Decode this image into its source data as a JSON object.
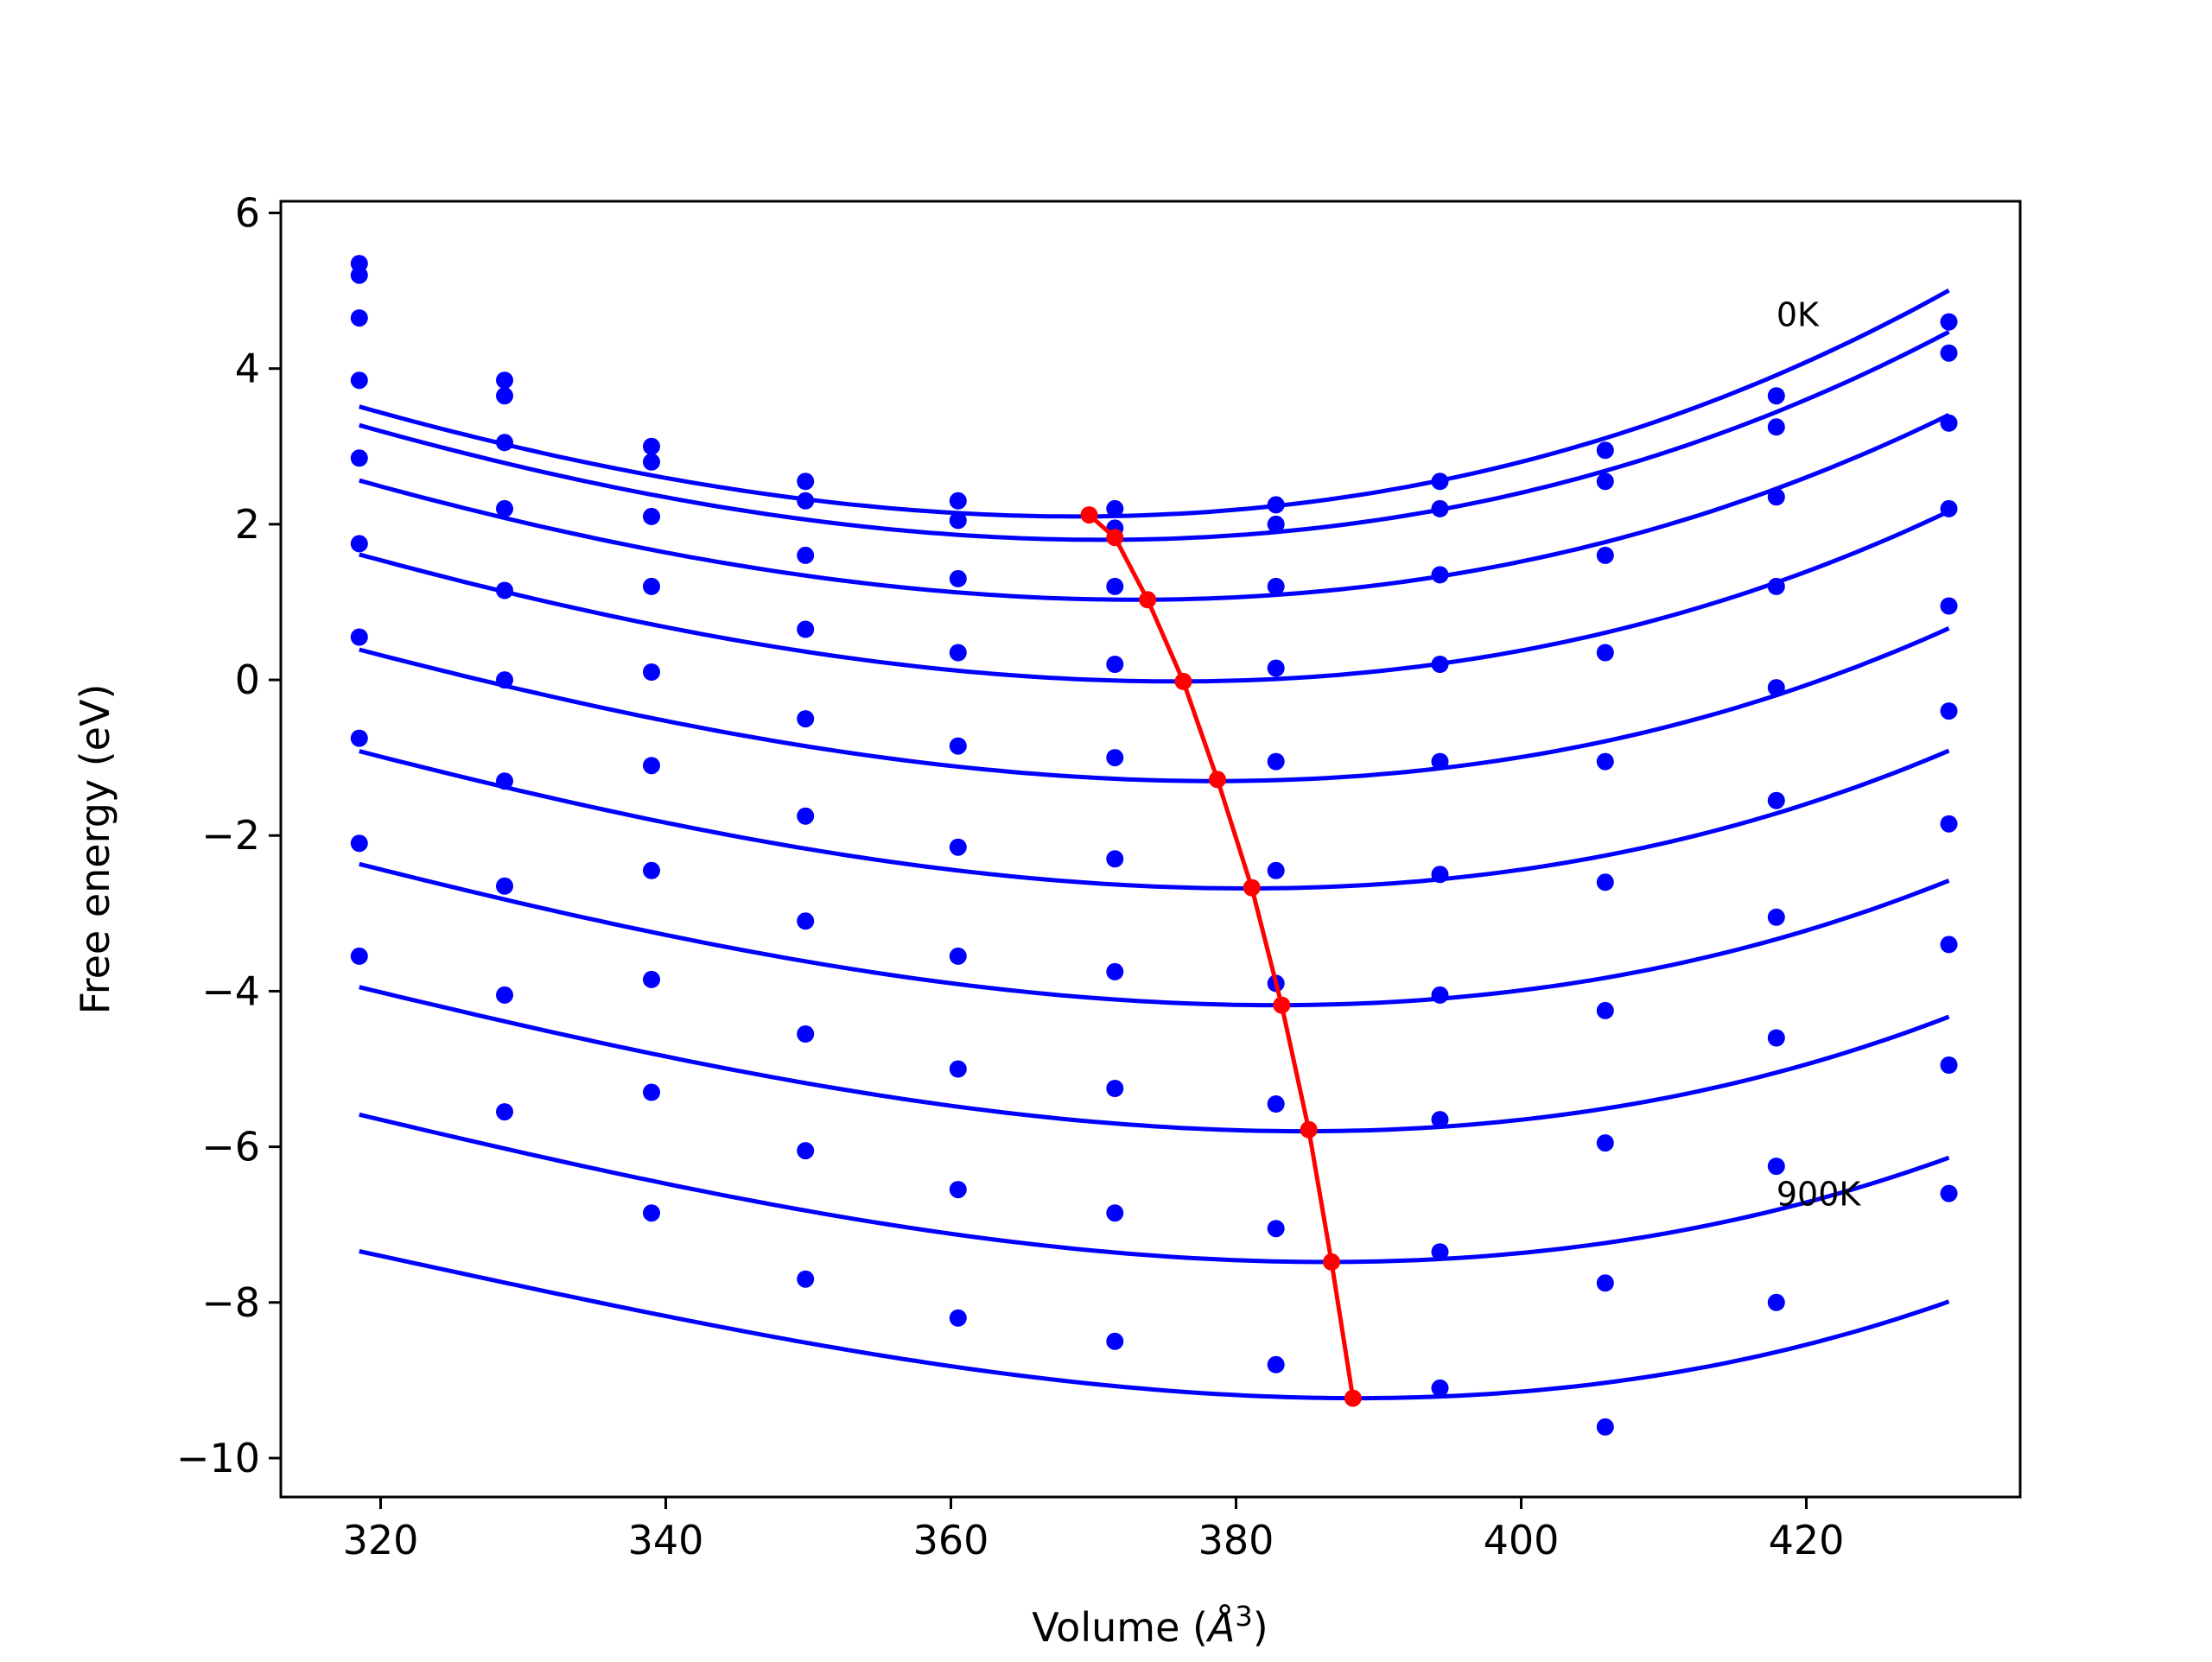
{
  "chart_data": {
    "type": "scatter",
    "title": "",
    "xlabel": "Volume (",
    "xlabel_symbol": "Å",
    "xlabel_power": "3",
    "xlabel_close": ")",
    "ylabel": "Free energy (eV)",
    "xlim": [
      313,
      435
    ],
    "ylim": [
      -10.5,
      6.15
    ],
    "xticks": [
      320,
      340,
      360,
      380,
      400,
      420
    ],
    "xtick_labels": [
      "320",
      "340",
      "360",
      "380",
      "400",
      "420"
    ],
    "yticks": [
      -10,
      -8,
      -6,
      -4,
      -2,
      0,
      2,
      4,
      6
    ],
    "ytick_labels": [
      "−10",
      "−8",
      "−6",
      "−4",
      "−2",
      "0",
      "2",
      "4",
      "6"
    ],
    "grid": false,
    "annotations": [
      {
        "text": "0K",
        "x": 417.9,
        "y": 4.7
      },
      {
        "text": "900K",
        "x": 417.9,
        "y": -6.6
      }
    ],
    "colors": {
      "points": "#0000ff",
      "fits": "#0000ff",
      "minimum": "#ff0000"
    },
    "x": [
      318.5,
      328.7,
      339.0,
      349.8,
      360.5,
      371.5,
      382.8,
      394.3,
      405.9,
      417.9,
      430.0
    ],
    "series": [
      {
        "y": [
          5.35,
          3.85,
          3.0,
          2.55,
          2.3,
          2.2,
          2.25,
          2.55,
          2.95,
          3.65,
          4.6
        ]
      },
      {
        "y": [
          5.2,
          3.65,
          2.8,
          2.3,
          2.05,
          1.95,
          2.0,
          2.2,
          2.55,
          3.25,
          4.2
        ]
      },
      {
        "y": [
          4.65,
          3.05,
          2.1,
          1.6,
          1.3,
          1.2,
          1.2,
          1.35,
          1.6,
          2.35,
          3.3
        ]
      },
      {
        "y": [
          3.85,
          2.2,
          1.2,
          0.65,
          0.35,
          0.2,
          0.15,
          0.2,
          0.35,
          1.2,
          2.2
        ]
      },
      {
        "y": [
          2.85,
          1.15,
          0.1,
          -0.5,
          -0.85,
          -1.0,
          -1.05,
          -1.05,
          -1.05,
          -0.1,
          0.95
        ]
      },
      {
        "y": [
          1.75,
          0.0,
          -1.1,
          -1.75,
          -2.15,
          -2.3,
          -2.45,
          -2.5,
          -2.6,
          -1.55,
          -0.4
        ]
      },
      {
        "y": [
          0.55,
          -1.3,
          -2.45,
          -3.1,
          -3.55,
          -3.75,
          -3.9,
          -4.05,
          -4.25,
          -3.05,
          -1.85
        ]
      },
      {
        "y": [
          -0.75,
          -2.65,
          -3.85,
          -4.55,
          -5.0,
          -5.25,
          -5.45,
          -5.65,
          -5.95,
          -4.6,
          -3.4
        ]
      },
      {
        "y": [
          -2.1,
          -4.05,
          -5.3,
          -6.05,
          -6.55,
          -6.85,
          -7.05,
          -7.35,
          -7.75,
          -6.25,
          -4.95
        ]
      },
      {
        "y": [
          -3.55,
          -5.55,
          -6.85,
          -7.7,
          -8.2,
          -8.5,
          -8.8,
          -9.1,
          -9.6,
          -8.0,
          -6.6
        ]
      }
    ],
    "fits": [
      {
        "vmin": 368.7,
        "emin": 2.1,
        "a": 0.000656,
        "b": 1.91e-06
      },
      {
        "vmin": 370.6,
        "emin": 1.8,
        "a": 0.000643,
        "b": 1.93e-06
      },
      {
        "vmin": 373.0,
        "emin": 1.03,
        "a": 0.000621,
        "b": 1.93e-06
      },
      {
        "vmin": 375.8,
        "emin": -0.02,
        "a": 0.000624,
        "b": 2.22e-06
      },
      {
        "vmin": 378.5,
        "emin": -1.3,
        "a": 0.000615,
        "b": 2.43e-06
      },
      {
        "vmin": 380.8,
        "emin": -2.68,
        "a": 0.000609,
        "b": 2.48e-06
      },
      {
        "vmin": 382.8,
        "emin": -4.18,
        "a": 0.0006,
        "b": 2.51e-06
      },
      {
        "vmin": 384.8,
        "emin": -5.8,
        "a": 0.000599,
        "b": 2.68e-06
      },
      {
        "vmin": 386.4,
        "emin": -7.48,
        "a": 0.00059,
        "b": 2.64e-06
      },
      {
        "vmin": 388.4,
        "emin": -9.23,
        "a": 0.000594,
        "b": 2.97e-06
      }
    ],
    "minimum_line": {
      "x": [
        369.7,
        371.5,
        373.8,
        376.3,
        378.7,
        381.1,
        383.2,
        385.1,
        386.7,
        388.2
      ],
      "y": [
        2.12,
        1.83,
        1.03,
        -0.02,
        -1.28,
        -2.67,
        -4.18,
        -5.78,
        -7.48,
        -9.23
      ]
    }
  }
}
